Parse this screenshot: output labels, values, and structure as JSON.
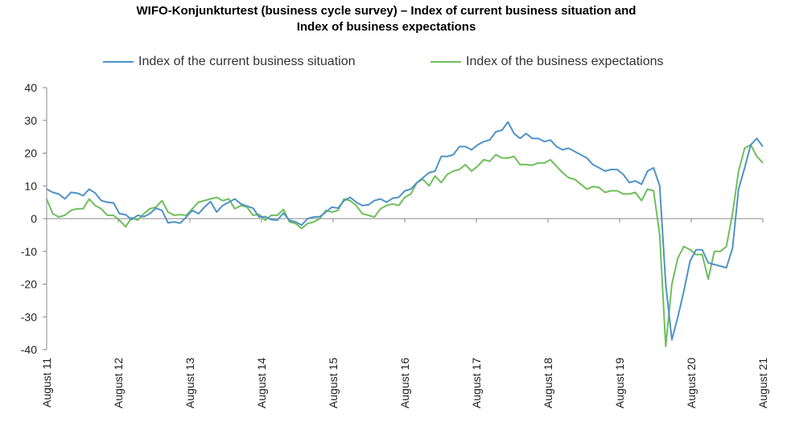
{
  "chart_data": {
    "type": "line",
    "title": "WIFO-Konjunkturtest (business cycle survey) – Index of current business situation and Index of business expectations",
    "title_lines": [
      "WIFO-Konjunkturtest (business cycle survey) – Index of current business situation and",
      "Index of business expectations"
    ],
    "x_labels": [
      "August 11",
      "August 12",
      "August 13",
      "August 14",
      "August 15",
      "August 16",
      "August 17",
      "August 18",
      "August 19",
      "August 20",
      "August 21"
    ],
    "y_ticks": [
      40,
      30,
      20,
      10,
      0,
      -10,
      -20,
      -30,
      -40
    ],
    "ylim": [
      -40,
      40
    ],
    "grid": false,
    "legend_position": "top",
    "series": [
      {
        "name": "Index of the current business situation",
        "color": "#4f93c8",
        "values": [
          9.0,
          8.0,
          7.5,
          6.0,
          8.0,
          7.8,
          7.0,
          9.0,
          7.8,
          5.5,
          5.0,
          4.8,
          1.5,
          1.2,
          -0.3,
          1.0,
          0.6,
          1.5,
          3.2,
          2.5,
          -1.3,
          -1.0,
          -1.4,
          0.5,
          2.5,
          1.5,
          3.5,
          5.2,
          2.0,
          4.0,
          5.0,
          6.0,
          4.5,
          3.8,
          3.2,
          0.5,
          0.6,
          -0.3,
          -0.5,
          1.7,
          -0.5,
          -1.0,
          -2.0,
          0.0,
          0.5,
          0.6,
          2.0,
          3.5,
          3.2,
          5.5,
          6.5,
          5.0,
          4.0,
          4.2,
          5.5,
          6.0,
          5.0,
          6.2,
          6.5,
          8.5,
          9.0,
          11.0,
          12.5,
          14.0,
          14.5,
          19.0,
          19.0,
          19.5,
          22.0,
          22.0,
          21.0,
          22.5,
          23.5,
          24.0,
          26.5,
          27.0,
          29.5,
          26.0,
          24.5,
          26.0,
          24.5,
          24.5,
          23.5,
          24.0,
          22.0,
          21.0,
          21.5,
          20.5,
          19.5,
          18.5,
          16.5,
          15.5,
          14.5,
          15.0,
          15.0,
          13.5,
          11.0,
          11.5,
          10.5,
          14.5,
          15.5,
          10.0,
          -20.0,
          -37.0,
          -30.0,
          -22.0,
          -13.0,
          -9.5,
          -9.5,
          -13.5,
          -14.0,
          -14.5,
          -15.0,
          -9.0,
          9.0,
          15.5,
          22.5,
          24.5,
          22.0
        ]
      },
      {
        "name": "Index of the business expectations",
        "color": "#6fbf5b",
        "values": [
          6.0,
          1.5,
          0.5,
          1.0,
          2.5,
          3.0,
          3.0,
          6.0,
          4.0,
          3.0,
          1.0,
          1.0,
          -0.5,
          -2.5,
          0.3,
          -0.5,
          1.5,
          3.0,
          3.5,
          5.5,
          2.0,
          1.0,
          1.2,
          1.0,
          3.0,
          5.0,
          5.5,
          6.0,
          6.5,
          5.5,
          6.0,
          3.0,
          4.0,
          3.5,
          1.0,
          1.3,
          -0.5,
          1.0,
          1.0,
          2.8,
          -1.0,
          -1.5,
          -3.0,
          -1.5,
          -1.0,
          0.0,
          2.5,
          2.0,
          2.5,
          6.0,
          5.5,
          4.0,
          1.5,
          1.0,
          0.5,
          3.0,
          4.0,
          4.5,
          4.0,
          6.5,
          7.5,
          11.0,
          12.0,
          10.0,
          13.0,
          11.0,
          13.5,
          14.5,
          15.0,
          16.5,
          14.5,
          16.0,
          18.0,
          17.5,
          19.5,
          18.5,
          18.5,
          19.0,
          16.5,
          16.5,
          16.3,
          17.0,
          17.0,
          18.0,
          16.0,
          14.0,
          12.5,
          12.0,
          10.5,
          9.0,
          9.8,
          9.5,
          8.0,
          8.5,
          8.5,
          7.5,
          7.5,
          8.0,
          5.5,
          9.0,
          8.5,
          -5.0,
          -39.0,
          -20.0,
          -12.0,
          -8.5,
          -9.5,
          -11.0,
          -11.0,
          -18.5,
          -10.0,
          -10.0,
          -8.5,
          1.5,
          14.5,
          21.5,
          22.5,
          19.0,
          17.0
        ]
      }
    ]
  }
}
